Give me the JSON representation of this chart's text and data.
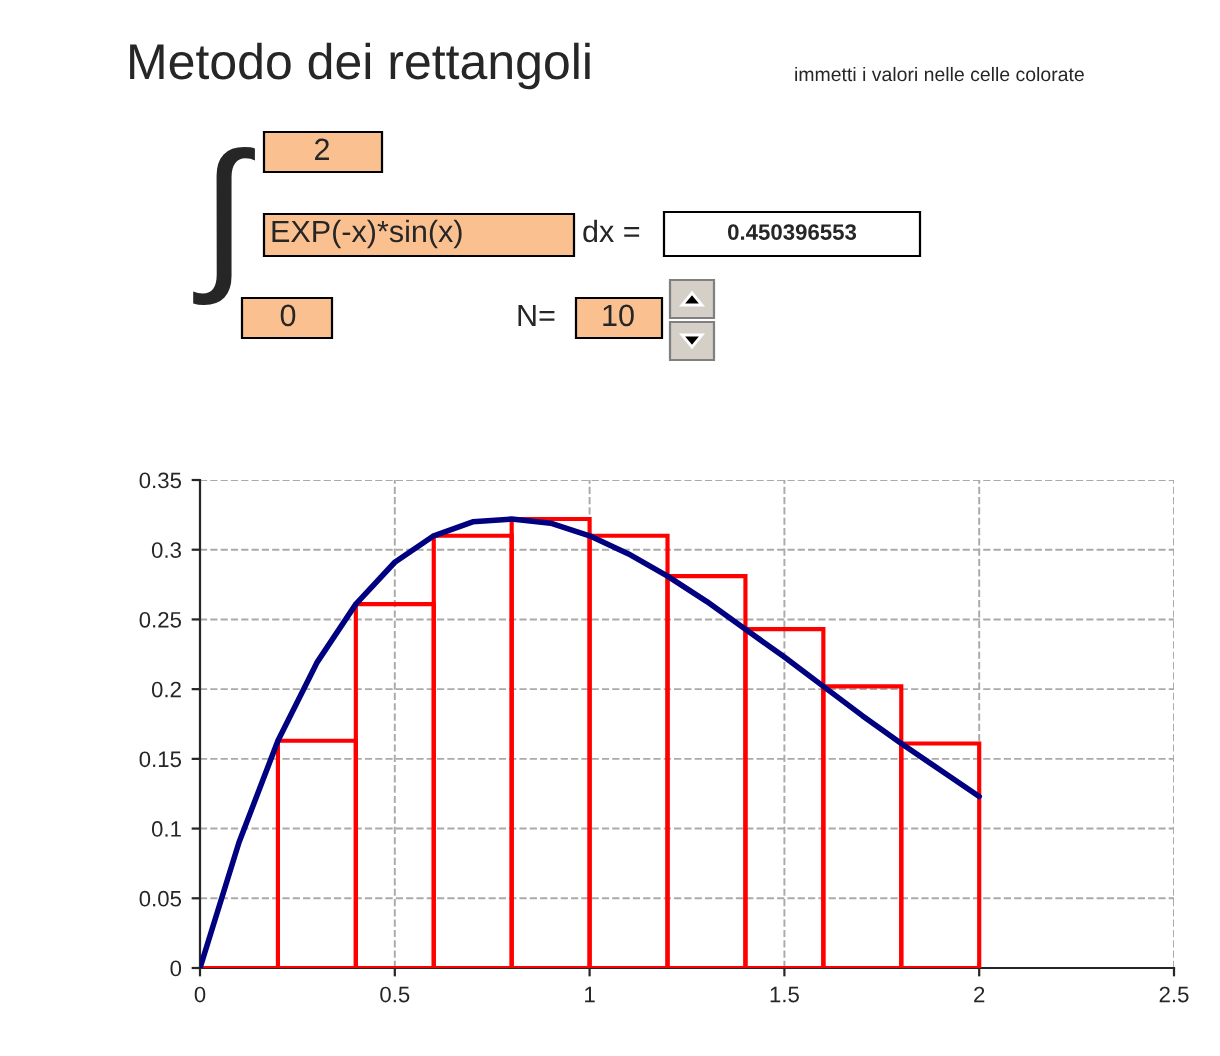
{
  "chart_data": {
    "type": "histogram",
    "title": "Metodo dei rettangoli",
    "subtitle": "immetti i valori nelle celle colorate",
    "annotations": [
      "∫",
      "2",
      "EXP(-x)*sin(x)",
      "dx =",
      "0.450396553",
      "0",
      "N=",
      "10"
    ],
    "bins": [
      0,
      0.2,
      0.4,
      0.6,
      0.8,
      1.0,
      1.2,
      1.4,
      1.6,
      1.8,
      2.0
    ],
    "values": [
      0,
      0.163,
      0.261,
      0.31,
      0.322,
      0.31,
      0.281,
      0.243,
      0.202,
      0.161
    ],
    "color": "#ff0000",
    "series": [
      {
        "type": "line",
        "color": "#000080",
        "x": [
          0,
          0.1,
          0.2,
          0.3,
          0.4,
          0.5,
          0.6,
          0.7,
          0.8,
          0.9,
          1.0,
          1.1,
          1.2,
          1.3,
          1.4,
          1.5,
          1.6,
          1.7,
          1.8,
          1.9,
          2.0
        ],
        "values": [
          0,
          0.09,
          0.163,
          0.219,
          0.261,
          0.291,
          0.31,
          0.32,
          0.322,
          0.319,
          0.31,
          0.297,
          0.281,
          0.263,
          0.243,
          0.223,
          0.202,
          0.181,
          0.161,
          0.142,
          0.123
        ]
      }
    ],
    "xlim": [
      0,
      2.5
    ],
    "xticks": [
      0,
      0.5,
      1,
      1.5,
      2,
      2.5
    ],
    "ylim": [
      0,
      0.35
    ],
    "yticks": [
      0,
      0.05,
      0.1,
      0.15,
      0.2,
      0.25,
      0.3,
      0.35
    ],
    "grid": true,
    "line_style": "solid",
    "marker": "none"
  }
}
